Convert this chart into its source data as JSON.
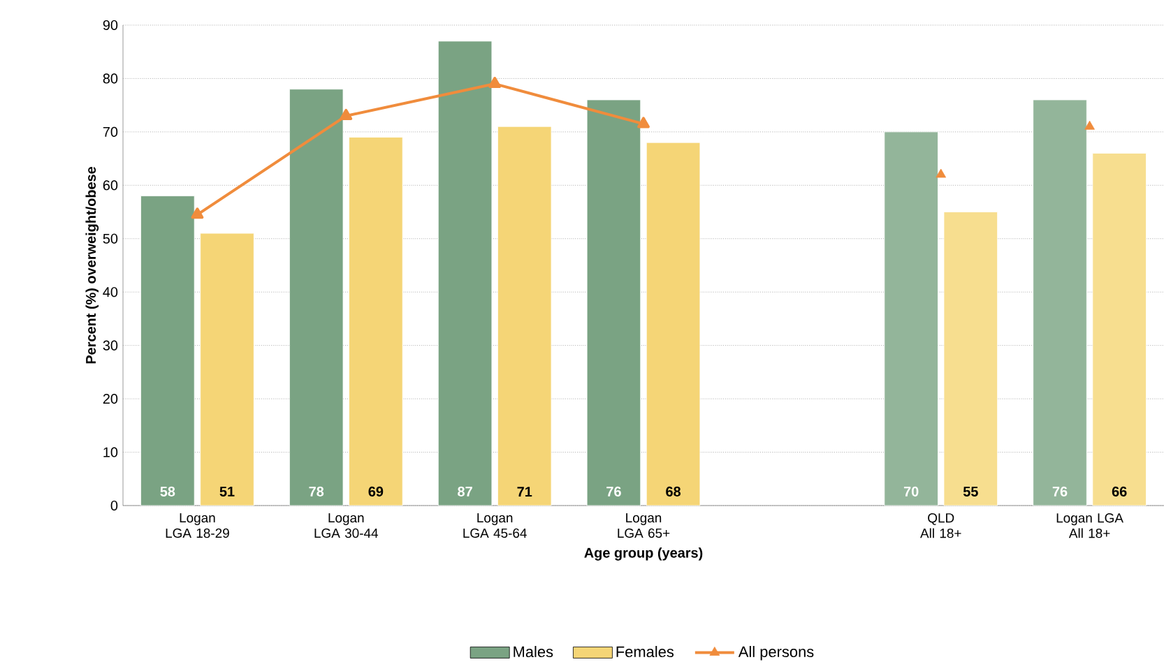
{
  "chart_data": {
    "type": "bar",
    "xlabel": "Age group (years)",
    "ylabel": "Percent (%) overweight/obese",
    "categories": [
      "Logan LGA 18-29",
      "Logan LGA 30-44",
      "Logan LGA 45-64",
      "Logan LGA 65+",
      null,
      "QLD All 18+",
      "Logan LGA All 18+"
    ],
    "series": [
      {
        "name": "Males",
        "color": "#7aa383",
        "colors": [
          "#7aa383",
          "#7aa383",
          "#7aa383",
          "#7aa383",
          "#7aa383",
          "#93b59a",
          "#93b59a"
        ],
        "values": [
          58,
          78,
          87,
          76,
          null,
          70,
          76
        ],
        "value_labels": [
          "58",
          "78",
          "87",
          "76",
          null,
          "70",
          "76"
        ]
      },
      {
        "name": "Females",
        "color": "#f5d576",
        "colors": [
          "#f5d576",
          "#f5d576",
          "#f5d576",
          "#f5d576",
          "#f5d576",
          "#f7de8f",
          "#f7de8f"
        ],
        "values": [
          51,
          69,
          71,
          68,
          null,
          55,
          66
        ],
        "value_labels": [
          "51",
          "69",
          "71",
          "68",
          null,
          "55",
          "66"
        ]
      },
      {
        "name": "All persons",
        "type": "line",
        "color": "#f08c3c",
        "marker": "triangle",
        "values": [
          54.5,
          73,
          79,
          71.5,
          null,
          null,
          null
        ]
      },
      {
        "type": "scatter",
        "color": "#f08c3c",
        "marker": "triangle",
        "values": [
          null,
          null,
          null,
          null,
          null,
          62,
          71
        ]
      }
    ],
    "ylim": [
      0,
      90
    ],
    "yticks": [
      0,
      10,
      20,
      30,
      40,
      50,
      60,
      70,
      80,
      90
    ],
    "grid": "y",
    "legend": "bottom"
  }
}
